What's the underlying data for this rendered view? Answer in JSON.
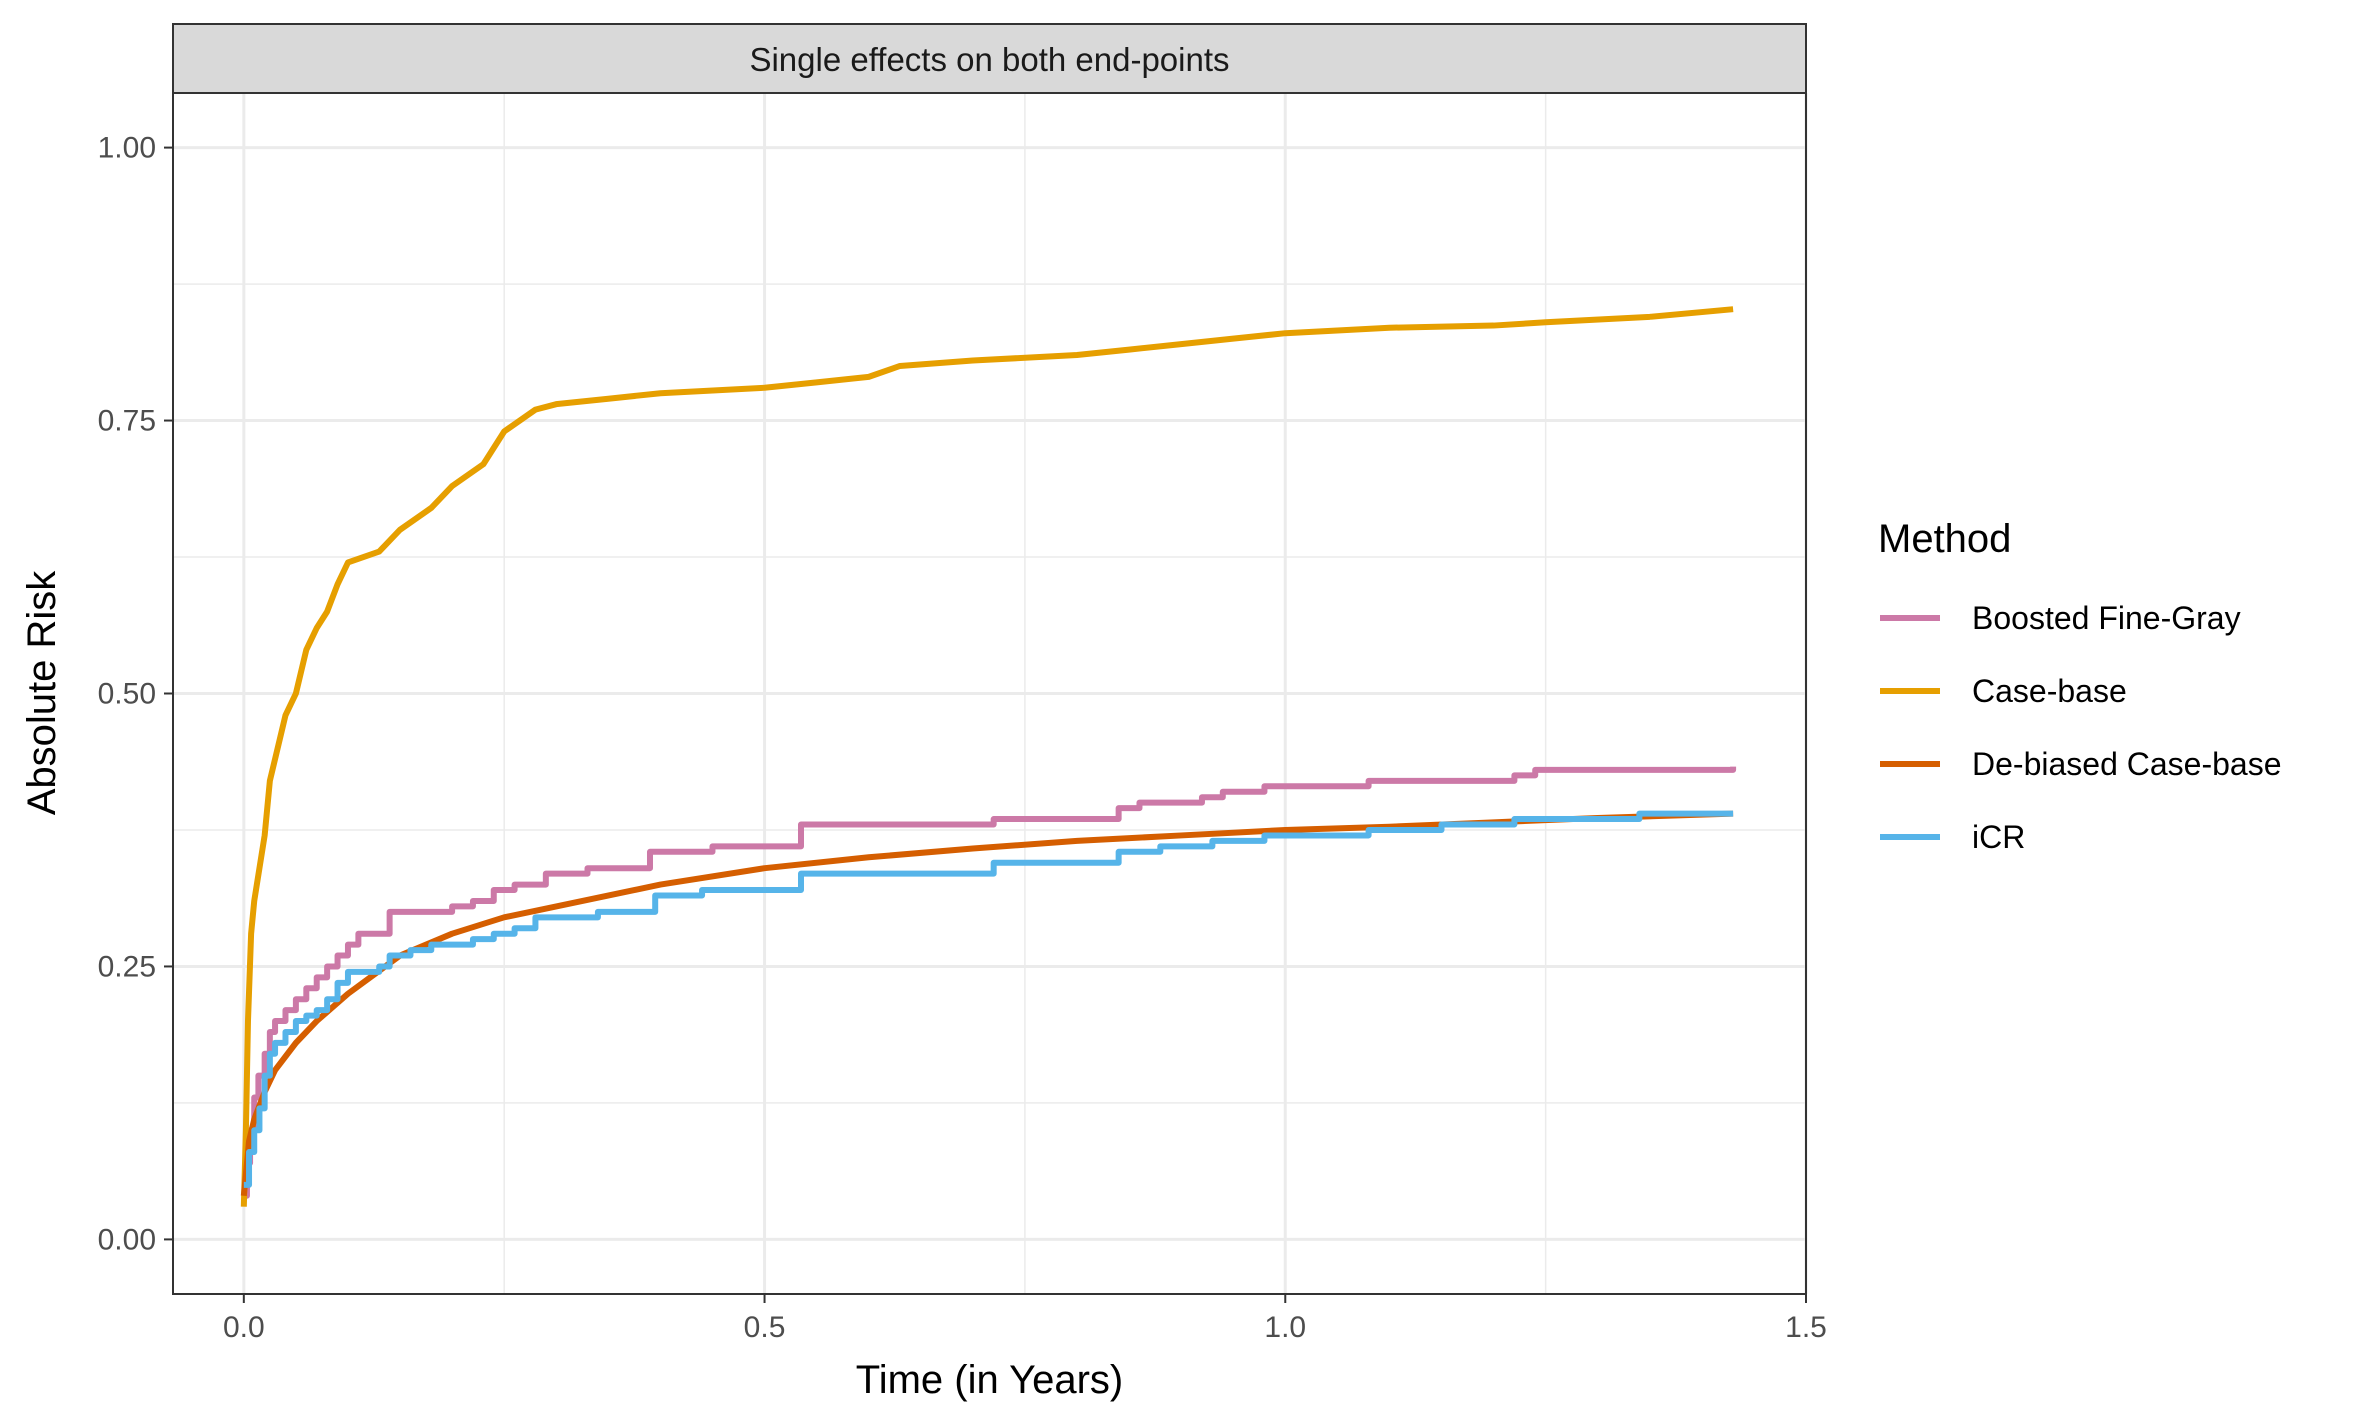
{
  "chart_data": {
    "type": "line",
    "title": "",
    "facet_label": "Single effects on both end-points",
    "xlabel": "Time (in Years)",
    "ylabel": "Absolute Risk",
    "xlim": [
      -0.068,
      1.5
    ],
    "ylim": [
      -0.05,
      1.05
    ],
    "x_ticks": [
      0.0,
      0.5,
      1.0,
      1.5
    ],
    "x_tick_labels": [
      "0.0",
      "0.5",
      "1.0",
      "1.5"
    ],
    "y_ticks": [
      0.0,
      0.25,
      0.5,
      0.75,
      1.0
    ],
    "y_tick_labels": [
      "0.00",
      "0.25",
      "0.50",
      "0.75",
      "1.00"
    ],
    "grid": true,
    "legend": {
      "title": "Method",
      "position": "right"
    },
    "series": [
      {
        "name": "Boosted Fine-Gray",
        "color": "#CC79A7",
        "step": true,
        "points": [
          [
            0.0,
            0.04
          ],
          [
            0.003,
            0.07
          ],
          [
            0.006,
            0.1
          ],
          [
            0.01,
            0.13
          ],
          [
            0.014,
            0.15
          ],
          [
            0.02,
            0.17
          ],
          [
            0.025,
            0.19
          ],
          [
            0.03,
            0.2
          ],
          [
            0.04,
            0.21
          ],
          [
            0.05,
            0.22
          ],
          [
            0.06,
            0.23
          ],
          [
            0.07,
            0.24
          ],
          [
            0.08,
            0.25
          ],
          [
            0.09,
            0.26
          ],
          [
            0.1,
            0.27
          ],
          [
            0.11,
            0.28
          ],
          [
            0.14,
            0.3
          ],
          [
            0.17,
            0.3
          ],
          [
            0.2,
            0.305
          ],
          [
            0.22,
            0.31
          ],
          [
            0.24,
            0.32
          ],
          [
            0.26,
            0.325
          ],
          [
            0.29,
            0.335
          ],
          [
            0.33,
            0.34
          ],
          [
            0.39,
            0.355
          ],
          [
            0.45,
            0.36
          ],
          [
            0.535,
            0.38
          ],
          [
            0.6,
            0.38
          ],
          [
            0.72,
            0.385
          ],
          [
            0.84,
            0.395
          ],
          [
            0.86,
            0.4
          ],
          [
            0.92,
            0.405
          ],
          [
            0.94,
            0.41
          ],
          [
            0.98,
            0.415
          ],
          [
            1.08,
            0.42
          ],
          [
            1.2,
            0.42
          ],
          [
            1.22,
            0.425
          ],
          [
            1.24,
            0.43
          ],
          [
            1.43,
            0.433
          ]
        ]
      },
      {
        "name": "Case-base",
        "color": "#E69F00",
        "step": false,
        "points": [
          [
            0.0,
            0.03
          ],
          [
            0.002,
            0.1
          ],
          [
            0.004,
            0.2
          ],
          [
            0.007,
            0.28
          ],
          [
            0.01,
            0.31
          ],
          [
            0.015,
            0.34
          ],
          [
            0.02,
            0.37
          ],
          [
            0.025,
            0.42
          ],
          [
            0.03,
            0.44
          ],
          [
            0.04,
            0.48
          ],
          [
            0.05,
            0.5
          ],
          [
            0.06,
            0.54
          ],
          [
            0.07,
            0.56
          ],
          [
            0.08,
            0.575
          ],
          [
            0.09,
            0.6
          ],
          [
            0.1,
            0.62
          ],
          [
            0.13,
            0.63
          ],
          [
            0.15,
            0.65
          ],
          [
            0.18,
            0.67
          ],
          [
            0.2,
            0.69
          ],
          [
            0.23,
            0.71
          ],
          [
            0.25,
            0.74
          ],
          [
            0.28,
            0.76
          ],
          [
            0.3,
            0.765
          ],
          [
            0.35,
            0.77
          ],
          [
            0.4,
            0.775
          ],
          [
            0.5,
            0.78
          ],
          [
            0.55,
            0.785
          ],
          [
            0.6,
            0.79
          ],
          [
            0.63,
            0.8
          ],
          [
            0.7,
            0.805
          ],
          [
            0.8,
            0.81
          ],
          [
            0.85,
            0.815
          ],
          [
            0.9,
            0.82
          ],
          [
            0.95,
            0.825
          ],
          [
            1.0,
            0.83
          ],
          [
            1.1,
            0.835
          ],
          [
            1.2,
            0.837
          ],
          [
            1.25,
            0.84
          ],
          [
            1.35,
            0.845
          ],
          [
            1.43,
            0.852
          ]
        ]
      },
      {
        "name": "De-biased Case-base",
        "color": "#D55E00",
        "step": false,
        "points": [
          [
            0.0,
            0.04
          ],
          [
            0.005,
            0.09
          ],
          [
            0.01,
            0.11
          ],
          [
            0.02,
            0.135
          ],
          [
            0.03,
            0.155
          ],
          [
            0.05,
            0.18
          ],
          [
            0.07,
            0.2
          ],
          [
            0.1,
            0.225
          ],
          [
            0.15,
            0.26
          ],
          [
            0.2,
            0.28
          ],
          [
            0.25,
            0.295
          ],
          [
            0.3,
            0.305
          ],
          [
            0.4,
            0.325
          ],
          [
            0.5,
            0.34
          ],
          [
            0.6,
            0.35
          ],
          [
            0.7,
            0.358
          ],
          [
            0.8,
            0.365
          ],
          [
            0.9,
            0.37
          ],
          [
            1.0,
            0.375
          ],
          [
            1.1,
            0.378
          ],
          [
            1.2,
            0.382
          ],
          [
            1.3,
            0.386
          ],
          [
            1.43,
            0.39
          ]
        ]
      },
      {
        "name": "iCR",
        "color": "#56B4E9",
        "step": true,
        "points": [
          [
            0.0,
            0.05
          ],
          [
            0.005,
            0.08
          ],
          [
            0.01,
            0.1
          ],
          [
            0.015,
            0.12
          ],
          [
            0.02,
            0.15
          ],
          [
            0.025,
            0.17
          ],
          [
            0.03,
            0.18
          ],
          [
            0.04,
            0.19
          ],
          [
            0.05,
            0.2
          ],
          [
            0.06,
            0.205
          ],
          [
            0.07,
            0.21
          ],
          [
            0.08,
            0.22
          ],
          [
            0.09,
            0.235
          ],
          [
            0.1,
            0.245
          ],
          [
            0.13,
            0.25
          ],
          [
            0.14,
            0.26
          ],
          [
            0.16,
            0.265
          ],
          [
            0.18,
            0.27
          ],
          [
            0.22,
            0.275
          ],
          [
            0.24,
            0.28
          ],
          [
            0.26,
            0.285
          ],
          [
            0.28,
            0.295
          ],
          [
            0.34,
            0.3
          ],
          [
            0.395,
            0.315
          ],
          [
            0.44,
            0.32
          ],
          [
            0.535,
            0.335
          ],
          [
            0.6,
            0.335
          ],
          [
            0.72,
            0.345
          ],
          [
            0.84,
            0.355
          ],
          [
            0.88,
            0.36
          ],
          [
            0.93,
            0.365
          ],
          [
            0.98,
            0.37
          ],
          [
            1.08,
            0.375
          ],
          [
            1.15,
            0.38
          ],
          [
            1.22,
            0.385
          ],
          [
            1.34,
            0.39
          ],
          [
            1.43,
            0.39
          ]
        ]
      }
    ]
  }
}
